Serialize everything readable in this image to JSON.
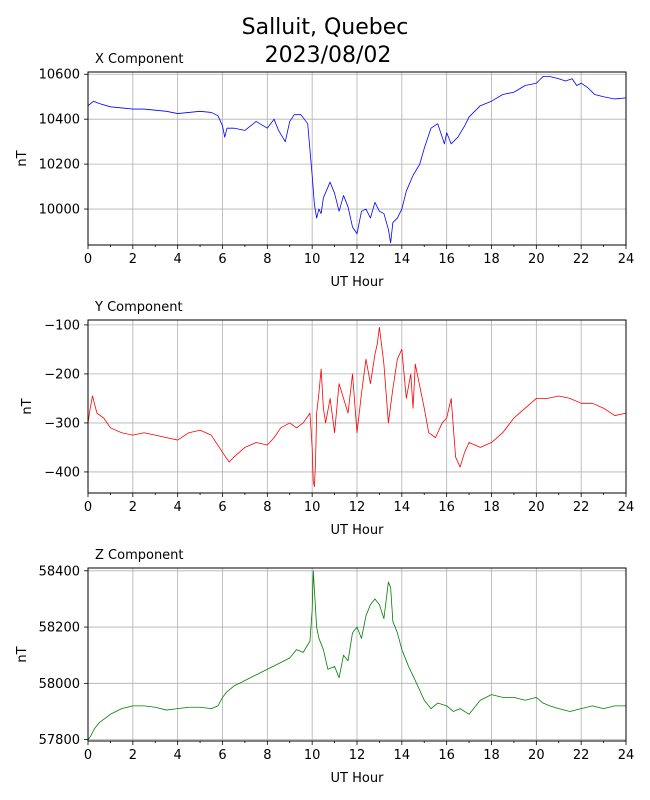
{
  "title_line1": "Salluit, Quebec",
  "title_line2": "2023/08/02",
  "chart_data": [
    {
      "type": "line",
      "title": "X Component",
      "xlabel": "UT Hour",
      "ylabel": "nT",
      "color": "#0000ff",
      "xlim": [
        0,
        24
      ],
      "ylim": [
        9840,
        10610
      ],
      "xticks": [
        0,
        2,
        4,
        6,
        8,
        10,
        12,
        14,
        16,
        18,
        20,
        22,
        24
      ],
      "yticks": [
        10000,
        10200,
        10400,
        10600
      ],
      "grid": true,
      "x": [
        0,
        0.25,
        0.5,
        1,
        1.5,
        2,
        2.5,
        3,
        3.5,
        4,
        4.5,
        5,
        5.5,
        5.8,
        6.0,
        6.1,
        6.2,
        6.5,
        7.0,
        7.5,
        8.0,
        8.3,
        8.5,
        8.8,
        9.0,
        9.2,
        9.5,
        9.8,
        10.0,
        10.1,
        10.2,
        10.3,
        10.4,
        10.5,
        10.8,
        11.0,
        11.2,
        11.4,
        11.6,
        11.8,
        12.0,
        12.2,
        12.4,
        12.6,
        12.8,
        13.0,
        13.2,
        13.4,
        13.5,
        13.6,
        13.8,
        14.0,
        14.2,
        14.5,
        14.8,
        15.0,
        15.3,
        15.6,
        15.9,
        16.0,
        16.2,
        16.5,
        16.8,
        17.0,
        17.5,
        18.0,
        18.5,
        19.0,
        19.5,
        20.0,
        20.3,
        20.6,
        21.0,
        21.3,
        21.6,
        21.8,
        22.0,
        22.3,
        22.6,
        23.0,
        23.5,
        24.0
      ],
      "y": [
        10460,
        10480,
        10470,
        10455,
        10450,
        10445,
        10445,
        10440,
        10435,
        10425,
        10430,
        10435,
        10430,
        10415,
        10370,
        10320,
        10360,
        10360,
        10350,
        10390,
        10360,
        10400,
        10350,
        10300,
        10390,
        10420,
        10420,
        10380,
        10150,
        10020,
        9960,
        10000,
        9980,
        10050,
        10120,
        10070,
        9990,
        10060,
        10010,
        9920,
        9890,
        9990,
        10000,
        9960,
        10030,
        9990,
        9980,
        9910,
        9850,
        9940,
        9960,
        10000,
        10080,
        10150,
        10200,
        10270,
        10360,
        10380,
        10290,
        10340,
        10290,
        10320,
        10370,
        10410,
        10460,
        10480,
        10510,
        10520,
        10550,
        10560,
        10590,
        10590,
        10580,
        10570,
        10580,
        10550,
        10560,
        10540,
        10510,
        10500,
        10490,
        10495
      ]
    },
    {
      "type": "line",
      "title": "Y Component",
      "xlabel": "UT Hour",
      "ylabel": "nT",
      "color": "#ff0000",
      "xlim": [
        0,
        24
      ],
      "ylim": [
        -443,
        -90
      ],
      "xticks": [
        0,
        2,
        4,
        6,
        8,
        10,
        12,
        14,
        16,
        18,
        20,
        22,
        24
      ],
      "yticks": [
        -400,
        -300,
        -200,
        -100
      ],
      "grid": true,
      "x": [
        0,
        0.1,
        0.2,
        0.4,
        0.7,
        1.0,
        1.5,
        2.0,
        2.5,
        3.0,
        3.5,
        4.0,
        4.5,
        5.0,
        5.5,
        6.0,
        6.3,
        6.5,
        7.0,
        7.5,
        8.0,
        8.3,
        8.6,
        9.0,
        9.3,
        9.6,
        9.9,
        10.0,
        10.05,
        10.1,
        10.15,
        10.2,
        10.25,
        10.3,
        10.4,
        10.5,
        10.6,
        10.8,
        11.0,
        11.2,
        11.4,
        11.6,
        11.8,
        12.0,
        12.2,
        12.4,
        12.6,
        12.8,
        12.9,
        13.0,
        13.2,
        13.3,
        13.4,
        13.6,
        13.8,
        14.0,
        14.2,
        14.4,
        14.5,
        14.6,
        15.0,
        15.2,
        15.5,
        15.8,
        16.0,
        16.2,
        16.4,
        16.6,
        16.8,
        17.0,
        17.5,
        18.0,
        18.5,
        19.0,
        19.5,
        20.0,
        20.5,
        21.0,
        21.5,
        22.0,
        22.5,
        23.0,
        23.5,
        24.0
      ],
      "y": [
        -300,
        -270,
        -245,
        -280,
        -290,
        -310,
        -320,
        -325,
        -320,
        -325,
        -330,
        -335,
        -320,
        -315,
        -325,
        -360,
        -380,
        -370,
        -350,
        -340,
        -345,
        -330,
        -310,
        -300,
        -310,
        -300,
        -280,
        -350,
        -420,
        -430,
        -380,
        -280,
        -260,
        -240,
        -190,
        -270,
        -300,
        -250,
        -320,
        -220,
        -250,
        -280,
        -200,
        -320,
        -240,
        -170,
        -220,
        -160,
        -140,
        -105,
        -180,
        -240,
        -300,
        -230,
        -170,
        -150,
        -250,
        -200,
        -270,
        -180,
        -270,
        -320,
        -330,
        -300,
        -290,
        -250,
        -370,
        -390,
        -360,
        -340,
        -350,
        -340,
        -320,
        -290,
        -270,
        -250,
        -250,
        -245,
        -250,
        -260,
        -260,
        -270,
        -285,
        -280
      ]
    },
    {
      "type": "line",
      "title": "Z Component",
      "xlabel": "UT Hour",
      "ylabel": "nT",
      "color": "#008000",
      "xlim": [
        0,
        24
      ],
      "ylim": [
        57795,
        58410
      ],
      "xticks": [
        0,
        2,
        4,
        6,
        8,
        10,
        12,
        14,
        16,
        18,
        20,
        22,
        24
      ],
      "yticks": [
        57800,
        58000,
        58200,
        58400
      ],
      "grid": true,
      "x": [
        0,
        0.1,
        0.3,
        0.5,
        1.0,
        1.5,
        2.0,
        2.5,
        3.0,
        3.5,
        4.0,
        4.5,
        5.0,
        5.5,
        5.8,
        6.0,
        6.2,
        6.5,
        7.0,
        7.5,
        8.0,
        8.5,
        9.0,
        9.3,
        9.6,
        9.9,
        10.0,
        10.05,
        10.1,
        10.2,
        10.3,
        10.5,
        10.7,
        11.0,
        11.2,
        11.4,
        11.6,
        11.8,
        12.0,
        12.2,
        12.4,
        12.6,
        12.8,
        13.0,
        13.2,
        13.4,
        13.5,
        13.6,
        13.8,
        14.0,
        14.3,
        14.6,
        15.0,
        15.3,
        15.6,
        16.0,
        16.3,
        16.6,
        17.0,
        17.5,
        18.0,
        18.5,
        19.0,
        19.5,
        20.0,
        20.3,
        20.6,
        21.0,
        21.5,
        22.0,
        22.5,
        23.0,
        23.5,
        24.0
      ],
      "y": [
        57800,
        57810,
        57840,
        57860,
        57890,
        57910,
        57920,
        57920,
        57915,
        57905,
        57910,
        57915,
        57915,
        57910,
        57920,
        57950,
        57970,
        57990,
        58010,
        58030,
        58050,
        58070,
        58090,
        58120,
        58110,
        58150,
        58260,
        58400,
        58330,
        58200,
        58160,
        58120,
        58050,
        58060,
        58020,
        58100,
        58080,
        58180,
        58200,
        58160,
        58240,
        58280,
        58300,
        58280,
        58230,
        58360,
        58340,
        58220,
        58180,
        58120,
        58060,
        58010,
        57940,
        57910,
        57930,
        57920,
        57900,
        57910,
        57890,
        57940,
        57960,
        57950,
        57950,
        57940,
        57950,
        57930,
        57920,
        57910,
        57900,
        57910,
        57920,
        57910,
        57920,
        57920
      ]
    }
  ]
}
